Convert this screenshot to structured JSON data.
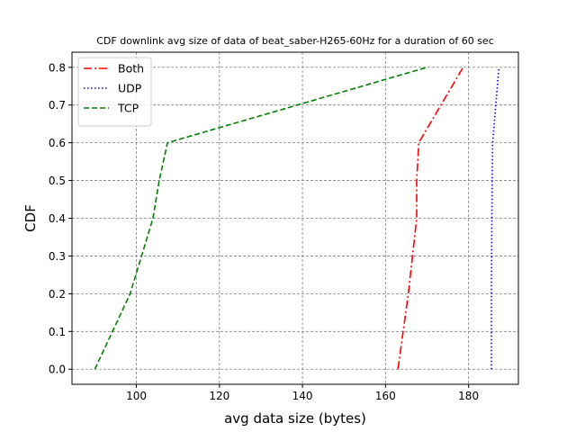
{
  "chart_data": {
    "type": "line",
    "title": "CDF downlink avg size of data of beat_saber-H265-60Hz for a duration of 60 sec",
    "xlabel": "avg data size (bytes)",
    "ylabel": "CDF",
    "xlim": [
      84.5,
      192
    ],
    "ylim": [
      -0.04,
      0.84
    ],
    "xticks": [
      100,
      120,
      140,
      160,
      180
    ],
    "yticks": [
      0.0,
      0.1,
      0.2,
      0.3,
      0.4,
      0.5,
      0.6,
      0.7,
      0.8
    ],
    "xtick_labels": [
      "100",
      "120",
      "140",
      "160",
      "180"
    ],
    "ytick_labels": [
      "0.0",
      "0.1",
      "0.2",
      "0.3",
      "0.4",
      "0.5",
      "0.6",
      "0.7",
      "0.8"
    ],
    "grid": true,
    "legend_position": "top-left",
    "series": [
      {
        "name": "Both",
        "color": "#ff0000",
        "linestyle": "dashdot",
        "x": [
          163.0,
          165.5,
          167.5,
          167.5,
          168.0,
          178.7
        ],
        "y": [
          0.0,
          0.2,
          0.4,
          0.5,
          0.6,
          0.8
        ]
      },
      {
        "name": "UDP",
        "color": "#0000ff",
        "linestyle": "dotted",
        "x": [
          185.5,
          185.5,
          185.6,
          185.7,
          185.8,
          187.3
        ],
        "y": [
          0.0,
          0.2,
          0.4,
          0.5,
          0.6,
          0.8
        ]
      },
      {
        "name": "TCP",
        "color": "#008000",
        "linestyle": "dashed",
        "x": [
          90.0,
          98.5,
          104.0,
          105.5,
          107.5,
          170.0
        ],
        "y": [
          0.0,
          0.2,
          0.4,
          0.5,
          0.6,
          0.8
        ]
      }
    ]
  }
}
